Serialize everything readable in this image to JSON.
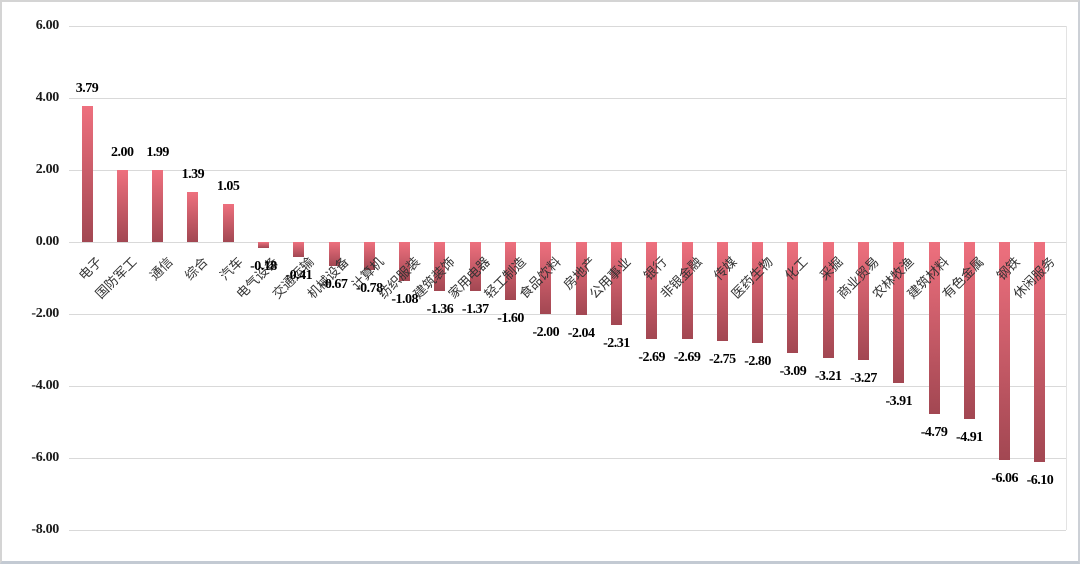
{
  "chart_data": {
    "type": "bar",
    "title": "",
    "xlabel": "",
    "ylabel": "",
    "categories": [
      "电子",
      "国防军工",
      "通信",
      "综合",
      "汽车",
      "电气设备",
      "交通运输",
      "机械设备",
      "计算机",
      "纺织服装",
      "建筑装饰",
      "家用电器",
      "轻工制造",
      "食品饮料",
      "房地产",
      "公用事业",
      "银行",
      "非银金融",
      "传媒",
      "医药生物",
      "化工",
      "采掘",
      "商业贸易",
      "农林牧渔",
      "建筑材料",
      "有色金属",
      "钢铁",
      "休闲服务"
    ],
    "values": [
      3.79,
      2.0,
      1.99,
      1.39,
      1.05,
      -0.18,
      -0.41,
      -0.67,
      -0.78,
      -1.08,
      -1.36,
      -1.37,
      -1.6,
      -2.0,
      -2.04,
      -2.31,
      -2.69,
      -2.69,
      -2.75,
      -2.8,
      -3.09,
      -3.21,
      -3.27,
      -3.91,
      -4.79,
      -4.91,
      -6.06,
      -6.1
    ],
    "value_labels": [
      "3.79",
      "2.00",
      "1.99",
      "1.39",
      "1.05",
      "-0.18",
      "-0.41",
      "-0.67",
      "-0.78",
      "-1.08",
      "-1.36",
      "-1.37",
      "-1.60",
      "-2.00",
      "-2.04",
      "-2.31",
      "-2.69",
      "-2.69",
      "-2.75",
      "-2.80",
      "-3.09",
      "-3.21",
      "-3.27",
      "-3.91",
      "-4.79",
      "-4.91",
      "-6.06",
      "-6.10"
    ],
    "ylim": [
      -8,
      6
    ],
    "yticks": [
      6,
      4,
      2,
      0,
      -2,
      -4,
      -6,
      -8
    ],
    "ytick_labels": [
      "6.00",
      "4.00",
      "2.00",
      "0.00",
      "-2.00",
      "-4.00",
      "-6.00",
      "-8.00"
    ],
    "grid": true,
    "legend": "none",
    "category_labels_rotation_deg": -45,
    "colors": {
      "bar_gradient_top": "#ee707e",
      "bar_gradient_bottom": "#a24752",
      "gridline": "#d9d9d9",
      "value_label": "#000000",
      "axis_label": "#1a1a1a",
      "category_label": "#333333",
      "background": "#ffffff",
      "frame_border": "#d4d4d4"
    }
  }
}
